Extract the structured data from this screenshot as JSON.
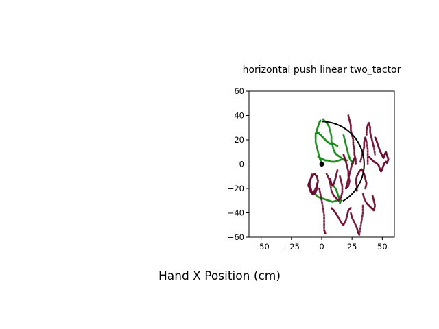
{
  "chart_data": {
    "type": "scatter",
    "title": "horizontal push linear two_tactor",
    "xlabel": "Hand X Position (cm)",
    "ylabel": "",
    "xlim": [
      -60,
      60
    ],
    "ylim": [
      -60,
      60
    ],
    "xticks": [
      -50,
      -25,
      0,
      25,
      50
    ],
    "yticks": [
      -40,
      -20,
      0,
      20,
      40,
      60
    ],
    "grid": false,
    "legend": "none",
    "colors": {
      "green": "#1a8a1a",
      "dark_red": "#6b0a2e",
      "arc": "#000000",
      "origin": "#000000"
    },
    "series": [
      {
        "color_key": "green",
        "traces": [
          [
            [
              -1,
              36
            ],
            [
              -2,
              34
            ],
            [
              -3,
              31
            ],
            [
              -4,
              28
            ],
            [
              -5,
              25
            ],
            [
              -5,
              22
            ],
            [
              -5,
              18
            ],
            [
              -4,
              14
            ],
            [
              -3,
              10
            ],
            [
              -2,
              6
            ],
            [
              -1,
              3
            ],
            [
              0,
              1
            ]
          ],
          [
            [
              1,
              37
            ],
            [
              4,
              34
            ],
            [
              6,
              31
            ],
            [
              7,
              27
            ],
            [
              8,
              23
            ],
            [
              8,
              19
            ],
            [
              9,
              15
            ],
            [
              10,
              11
            ],
            [
              12,
              8
            ],
            [
              15,
              6
            ],
            [
              18,
              4
            ],
            [
              21,
              3
            ]
          ],
          [
            [
              -5,
              25
            ],
            [
              -3,
              26
            ],
            [
              -1,
              24
            ],
            [
              1,
              22
            ],
            [
              3,
              20
            ],
            [
              5,
              18
            ],
            [
              7,
              17
            ],
            [
              9,
              17
            ],
            [
              11,
              16
            ],
            [
              13,
              15
            ]
          ],
          [
            [
              -3,
              6
            ],
            [
              -1,
              5
            ],
            [
              1,
              4
            ],
            [
              3,
              3
            ],
            [
              5,
              3
            ],
            [
              8,
              2
            ],
            [
              11,
              2
            ],
            [
              14,
              3
            ],
            [
              17,
              4
            ],
            [
              20,
              3
            ]
          ],
          [
            [
              18,
              24
            ],
            [
              19,
              20
            ],
            [
              20,
              16
            ],
            [
              21,
              12
            ],
            [
              22,
              8
            ],
            [
              23,
              5
            ],
            [
              24,
              3
            ],
            [
              25,
              2
            ],
            [
              26,
              1
            ]
          ],
          [
            [
              -6,
              -22
            ],
            [
              -5,
              -25
            ],
            [
              -3,
              -27
            ],
            [
              0,
              -28
            ],
            [
              3,
              -29
            ],
            [
              6,
              -30
            ],
            [
              9,
              -31
            ],
            [
              12,
              -30
            ]
          ],
          [
            [
              10,
              -18
            ],
            [
              12,
              -21
            ],
            [
              13,
              -24
            ],
            [
              14,
              -27
            ],
            [
              15,
              -29
            ],
            [
              16,
              -30
            ],
            [
              15,
              -32
            ]
          ]
        ]
      },
      {
        "color_key": "dark_red",
        "traces": [
          [
            [
              -8,
              -8
            ],
            [
              -9,
              -12
            ],
            [
              -10,
              -16
            ],
            [
              -9,
              -20
            ],
            [
              -8,
              -24
            ],
            [
              -6,
              -22
            ],
            [
              -4,
              -18
            ],
            [
              -3,
              -14
            ],
            [
              -4,
              -10
            ],
            [
              -6,
              -8
            ],
            [
              -8,
              -10
            ],
            [
              -10,
              -14
            ],
            [
              -11,
              -18
            ]
          ],
          [
            [
              -2,
              -20
            ],
            [
              -1,
              -25
            ],
            [
              0,
              -30
            ],
            [
              1,
              -36
            ],
            [
              2,
              -42
            ],
            [
              2,
              -48
            ],
            [
              2,
              -54
            ],
            [
              3,
              -57
            ]
          ],
          [
            [
              4,
              -8
            ],
            [
              6,
              -12
            ],
            [
              7,
              -16
            ],
            [
              8,
              -22
            ],
            [
              10,
              -26
            ],
            [
              12,
              -28
            ],
            [
              14,
              -30
            ],
            [
              16,
              -27
            ],
            [
              17,
              -23
            ],
            [
              17,
              -18
            ],
            [
              16,
              -14
            ],
            [
              15,
              -10
            ]
          ],
          [
            [
              8,
              -36
            ],
            [
              10,
              -38
            ],
            [
              12,
              -41
            ],
            [
              14,
              -44
            ],
            [
              16,
              -48
            ],
            [
              18,
              -50
            ],
            [
              20,
              -46
            ],
            [
              21,
              -42
            ],
            [
              22,
              -38
            ],
            [
              24,
              -36
            ]
          ],
          [
            [
              20,
              -20
            ],
            [
              21,
              -16
            ],
            [
              22,
              -12
            ],
            [
              23,
              -8
            ],
            [
              24,
              -4
            ],
            [
              25,
              0
            ],
            [
              26,
              2
            ],
            [
              27,
              5
            ]
          ],
          [
            [
              22,
              40
            ],
            [
              23,
              36
            ],
            [
              24,
              32
            ],
            [
              24,
              28
            ],
            [
              25,
              24
            ],
            [
              26,
              20
            ],
            [
              26,
              16
            ],
            [
              27,
              12
            ],
            [
              27,
              8
            ],
            [
              28,
              4
            ],
            [
              28,
              0
            ]
          ],
          [
            [
              24,
              -40
            ],
            [
              25,
              -44
            ],
            [
              27,
              -48
            ],
            [
              29,
              -52
            ],
            [
              30,
              -56
            ],
            [
              31,
              -58
            ],
            [
              32,
              -52
            ],
            [
              33,
              -46
            ],
            [
              34,
              -40
            ],
            [
              34,
              -34
            ]
          ],
          [
            [
              29,
              -22
            ],
            [
              29,
              -18
            ],
            [
              28,
              -14
            ],
            [
              29,
              -10
            ],
            [
              31,
              -6
            ],
            [
              33,
              -4
            ],
            [
              35,
              -8
            ],
            [
              36,
              -12
            ],
            [
              37,
              -16
            ],
            [
              36,
              -20
            ]
          ],
          [
            [
              32,
              2
            ],
            [
              33,
              6
            ],
            [
              34,
              10
            ],
            [
              35,
              14
            ],
            [
              35,
              18
            ],
            [
              36,
              22
            ],
            [
              37,
              18
            ],
            [
              38,
              12
            ],
            [
              38,
              6
            ],
            [
              38,
              0
            ]
          ],
          [
            [
              34,
              -24
            ],
            [
              35,
              -28
            ],
            [
              37,
              -32
            ],
            [
              39,
              -34
            ],
            [
              41,
              -36
            ],
            [
              43,
              -38
            ],
            [
              44,
              -34
            ],
            [
              43,
              -30
            ],
            [
              42,
              -26
            ]
          ],
          [
            [
              37,
              24
            ],
            [
              37,
              28
            ],
            [
              38,
              32
            ],
            [
              39,
              34
            ],
            [
              40,
              30
            ],
            [
              40,
              26
            ],
            [
              41,
              22
            ],
            [
              42,
              18
            ],
            [
              43,
              14
            ],
            [
              44,
              8
            ]
          ],
          [
            [
              39,
              6
            ],
            [
              41,
              4
            ],
            [
              43,
              2
            ],
            [
              45,
              1
            ],
            [
              47,
              -1
            ],
            [
              48,
              -4
            ],
            [
              49,
              -6
            ],
            [
              50,
              -4
            ],
            [
              51,
              -1
            ],
            [
              52,
              1
            ]
          ],
          [
            [
              44,
              22
            ],
            [
              45,
              20
            ],
            [
              46,
              17
            ],
            [
              47,
              14
            ],
            [
              48,
              11
            ],
            [
              49,
              9
            ],
            [
              50,
              7
            ],
            [
              51,
              5
            ],
            [
              52,
              8
            ],
            [
              53,
              10
            ],
            [
              54,
              7
            ],
            [
              55,
              4
            ],
            [
              54,
              1
            ],
            [
              53,
              2
            ]
          ],
          [
            [
              18,
              8
            ],
            [
              19,
              5
            ],
            [
              20,
              2
            ],
            [
              21,
              -2
            ],
            [
              22,
              -6
            ],
            [
              22,
              -10
            ],
            [
              23,
              -14
            ],
            [
              22,
              -18
            ],
            [
              20,
              -20
            ]
          ],
          [
            [
              13,
              -5
            ],
            [
              12,
              -9
            ],
            [
              11,
              -13
            ],
            [
              10,
              -16
            ],
            [
              9,
              -18
            ],
            [
              8,
              -16
            ],
            [
              7,
              -12
            ]
          ],
          [
            [
              -10,
              -14
            ],
            [
              -11,
              -17
            ],
            [
              -10,
              -20
            ],
            [
              -9,
              -23
            ],
            [
              -7,
              -25
            ],
            [
              -5,
              -23
            ],
            [
              -4,
              -20
            ],
            [
              -4,
              -16
            ]
          ]
        ]
      }
    ],
    "overlays": {
      "arc": {
        "center": [
          0,
          0
        ],
        "radius": 35,
        "start_deg": -60,
        "end_deg": 90
      },
      "origin_marker": {
        "x": 0,
        "y": 0
      }
    }
  }
}
